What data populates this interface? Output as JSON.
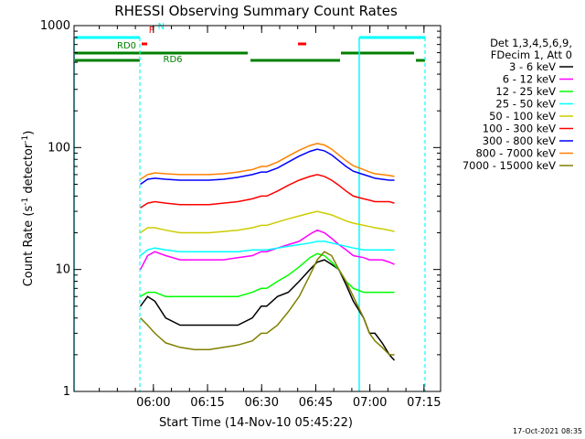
{
  "chart_data": {
    "type": "line",
    "title": "RHESSI Observing Summary Count Rates",
    "xlabel": "Start Time (14-Nov-10 05:45:22)",
    "ylabel": "Count Rate (s",
    "ylabel_sup1": "-1",
    "ylabel_mid": " detector",
    "ylabel_sup2": "-1",
    "ylabel_end": ")",
    "x_unit": "minutes since 05:45:22",
    "xlim": [
      -7.4,
      94.2
    ],
    "ylim": [
      1,
      1000
    ],
    "y_scale": "log",
    "x_ticks": [
      {
        "value": 14.6,
        "label": "06:00"
      },
      {
        "value": 29.6,
        "label": "06:15"
      },
      {
        "value": 44.6,
        "label": "06:30"
      },
      {
        "value": 59.6,
        "label": "06:45"
      },
      {
        "value": 74.6,
        "label": "07:00"
      },
      {
        "value": 89.6,
        "label": "07:15"
      }
    ],
    "y_ticks": [
      {
        "value": 1,
        "label": "1"
      },
      {
        "value": 10,
        "label": "10"
      },
      {
        "value": 100,
        "label": "100"
      },
      {
        "value": 1000,
        "label": "1000"
      }
    ],
    "legend_position": "right",
    "legend_header": [
      "Det 1,3,4,5,6,9,",
      "FDecim 1, Att 0"
    ],
    "series": [
      {
        "name": "3 - 6 keV",
        "color": "#000000",
        "x": [
          11,
          13,
          15,
          18,
          22,
          26,
          30,
          34,
          38,
          42,
          44.5,
          46,
          49,
          52,
          55,
          58,
          60,
          62,
          64,
          66,
          68,
          70,
          72.9,
          74.5,
          76,
          78,
          80,
          81.4
        ],
        "y": [
          5,
          6,
          5.5,
          4,
          3.5,
          3.5,
          3.5,
          3.5,
          3.5,
          4,
          5,
          5,
          6,
          6.5,
          8,
          10,
          11.5,
          12,
          11,
          10,
          7.5,
          5.5,
          4,
          3,
          3,
          2.5,
          2,
          1.8
        ]
      },
      {
        "name": "6 - 12 keV",
        "color": "#ff00ff",
        "x": [
          11,
          13,
          15,
          18,
          22,
          26,
          30,
          34,
          38,
          42,
          44.5,
          46,
          49,
          52,
          55,
          58,
          60,
          62,
          64,
          66,
          68,
          70,
          72.9,
          74.5,
          76,
          78,
          80,
          81.4
        ],
        "y": [
          10,
          13,
          14,
          13,
          12,
          12,
          12,
          12,
          12.5,
          13,
          14,
          14,
          15,
          16,
          17,
          19.5,
          21,
          20,
          18,
          16,
          14.5,
          13,
          12.5,
          12,
          12,
          12,
          11.5,
          11
        ]
      },
      {
        "name": "12 - 25 keV",
        "color": "#00ff00",
        "x": [
          11,
          13,
          15,
          18,
          22,
          26,
          30,
          34,
          38,
          42,
          44.5,
          46,
          49,
          52,
          55,
          58,
          60,
          62,
          64,
          66,
          68,
          70,
          72.9,
          74.5,
          76,
          78,
          80,
          81.4
        ],
        "y": [
          6,
          6.5,
          6.5,
          6,
          6,
          6,
          6,
          6,
          6,
          6.5,
          7,
          7,
          8,
          9,
          10.5,
          12.5,
          13.5,
          13,
          11.5,
          10,
          8,
          7,
          6.5,
          6.5,
          6.5,
          6.5,
          6.5,
          6.5
        ]
      },
      {
        "name": "25 - 50 keV",
        "color": "#00ffff",
        "x": [
          11,
          13,
          15,
          18,
          22,
          26,
          30,
          34,
          38,
          42,
          44.5,
          46,
          49,
          52,
          55,
          58,
          60,
          62,
          64,
          66,
          68,
          70,
          72.9,
          74.5,
          76,
          78,
          80,
          81.4
        ],
        "y": [
          13,
          14.5,
          15,
          14.5,
          14,
          14,
          14,
          14,
          14,
          14.5,
          14.5,
          14.5,
          15,
          15.5,
          16,
          16.5,
          17,
          17,
          16.5,
          16,
          15.5,
          15,
          14.5,
          14.5,
          14.5,
          14.5,
          14.5,
          14.5
        ]
      },
      {
        "name": "50 - 100 keV",
        "color": "#cccc00",
        "x": [
          11,
          13,
          15,
          18,
          22,
          26,
          30,
          34,
          38,
          42,
          44.5,
          46,
          49,
          52,
          55,
          58,
          60,
          62,
          64,
          66,
          68,
          70,
          72.9,
          74.5,
          76,
          78,
          80,
          81.4
        ],
        "y": [
          20,
          22,
          22,
          21,
          20,
          20,
          20,
          20.5,
          21,
          22,
          23,
          23,
          24.5,
          26,
          27.5,
          29,
          30,
          29,
          28,
          26.5,
          25,
          24,
          23,
          22.5,
          22,
          21.5,
          21,
          20.5
        ]
      },
      {
        "name": "100 - 300 keV",
        "color": "#ff0000",
        "x": [
          11,
          13,
          15,
          18,
          22,
          26,
          30,
          34,
          38,
          42,
          44.5,
          46,
          49,
          52,
          55,
          58,
          60,
          62,
          64,
          66,
          68,
          70,
          72.9,
          74.5,
          76,
          78,
          80,
          81.4
        ],
        "y": [
          32,
          35,
          36,
          35,
          34,
          34,
          34,
          35,
          36,
          38,
          40,
          40,
          44,
          49,
          54,
          58,
          60,
          58,
          54,
          49,
          44,
          40,
          38,
          37,
          36,
          36,
          36,
          35
        ]
      },
      {
        "name": "300 - 800 keV",
        "color": "#0000ff",
        "x": [
          11,
          13,
          15,
          18,
          22,
          26,
          30,
          34,
          38,
          42,
          44.5,
          46,
          49,
          52,
          55,
          58,
          60,
          62,
          64,
          66,
          68,
          70,
          72.9,
          74.5,
          76,
          78,
          80,
          81.4
        ],
        "y": [
          50,
          55,
          56,
          55,
          54,
          54,
          54,
          55,
          57,
          60,
          63,
          63,
          68,
          76,
          85,
          93,
          97,
          94,
          87,
          78,
          70,
          64,
          60,
          58,
          56,
          55,
          54,
          54
        ]
      },
      {
        "name": "800 - 7000 keV",
        "color": "#ff8000",
        "x": [
          11,
          13,
          15,
          18,
          22,
          26,
          30,
          34,
          38,
          42,
          44.5,
          46,
          49,
          52,
          55,
          58,
          60,
          62,
          64,
          66,
          68,
          70,
          72.9,
          74.5,
          76,
          78,
          80,
          81.4
        ],
        "y": [
          55,
          60,
          62,
          61,
          60,
          60,
          60,
          61,
          63,
          66,
          70,
          70,
          76,
          85,
          95,
          104,
          108,
          105,
          97,
          87,
          78,
          71,
          66,
          63,
          61,
          60,
          59,
          58
        ]
      },
      {
        "name": "7000 - 15000 keV",
        "color": "#808000",
        "x": [
          11,
          13,
          15,
          18,
          22,
          26,
          30,
          34,
          38,
          42,
          44.5,
          46,
          49,
          52,
          55,
          58,
          60,
          62,
          64,
          66,
          68,
          70,
          72.9,
          74.5,
          76,
          78,
          80,
          81.4
        ],
        "y": [
          4,
          3.5,
          3,
          2.5,
          2.3,
          2.2,
          2.2,
          2.3,
          2.4,
          2.6,
          3,
          3,
          3.5,
          4.5,
          6,
          9,
          12,
          14,
          13,
          10,
          8,
          6,
          4,
          3,
          2.6,
          2.3,
          2,
          2
        ]
      }
    ],
    "annotations": [
      {
        "label": "F",
        "color": "#ff0000",
        "x": 13.3,
        "y": 870
      },
      {
        "label": "N",
        "color": "#00ffff",
        "x": 15.8,
        "y": 930
      },
      {
        "label": "RD0",
        "color": "#008000",
        "x": 4.5,
        "y": 650
      },
      {
        "label": "RD6",
        "color": "#008000",
        "x": 17.3,
        "y": 500
      }
    ],
    "footer_date": "17-Oct-2021 08:35"
  }
}
